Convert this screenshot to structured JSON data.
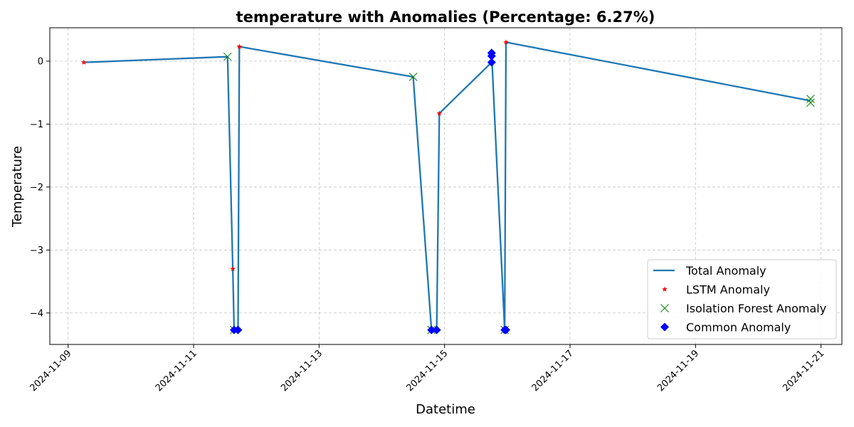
{
  "chart_data": {
    "type": "line",
    "title": "temperature with Anomalies (Percentage: 6.27%)",
    "xlabel": "Datetime",
    "ylabel": "Temperature",
    "x_ticks": [
      "2024-11-09",
      "2024-11-11",
      "2024-11-13",
      "2024-11-15",
      "2024-11-17",
      "2024-11-19",
      "2024-11-21"
    ],
    "y_ticks": [
      0,
      -1,
      -2,
      -3,
      -4
    ],
    "y_tick_labels": [
      "0",
      "−1",
      "−2",
      "−3",
      "−4"
    ],
    "xlim": [
      "2024-11-08T17:00",
      "2024-11-21T08:00"
    ],
    "ylim": [
      -4.5,
      0.53
    ],
    "grid": true,
    "legend_position": "lower-right",
    "series": [
      {
        "name": "Total Anomaly",
        "kind": "line",
        "color": "#1f77b4",
        "points": [
          [
            "2024-11-09T06:00",
            -0.02
          ],
          [
            "2024-11-11T13:00",
            0.07
          ],
          [
            "2024-11-11T15:00",
            -3.3
          ],
          [
            "2024-11-11T15:30",
            -4.27
          ],
          [
            "2024-11-11T17:00",
            -4.27
          ],
          [
            "2024-11-11T17:30",
            0.23
          ],
          [
            "2024-11-14T12:00",
            -0.25
          ],
          [
            "2024-11-14T19:00",
            -4.27
          ],
          [
            "2024-11-14T21:00",
            -4.27
          ],
          [
            "2024-11-14T22:00",
            -0.83
          ],
          [
            "2024-11-15T18:00",
            -0.02
          ],
          [
            "2024-11-15T18:00",
            0.13
          ],
          [
            "2024-11-15T23:00",
            -4.27
          ],
          [
            "2024-11-15T23:30",
            0.3
          ],
          [
            "2024-11-20T20:00",
            -0.63
          ]
        ]
      },
      {
        "name": "LSTM Anomaly",
        "kind": "marker",
        "marker": "star",
        "color": "#ff0000",
        "points": [
          [
            "2024-11-09T06:00",
            -0.02
          ],
          [
            "2024-11-11T15:00",
            -3.3
          ],
          [
            "2024-11-11T17:30",
            0.23
          ],
          [
            "2024-11-14T22:00",
            -0.83
          ],
          [
            "2024-11-15T23:30",
            0.3
          ]
        ]
      },
      {
        "name": "Isolation Forest Anomaly",
        "kind": "marker",
        "marker": "x",
        "color": "#008000",
        "points": [
          [
            "2024-11-11T13:00",
            0.07
          ],
          [
            "2024-11-11T15:30",
            -4.27
          ],
          [
            "2024-11-14T12:00",
            -0.25
          ],
          [
            "2024-11-14T19:00",
            -4.27
          ],
          [
            "2024-11-15T23:00",
            -4.27
          ],
          [
            "2024-11-20T20:00",
            -0.6
          ],
          [
            "2024-11-20T20:00",
            -0.66
          ]
        ]
      },
      {
        "name": "Common Anomaly",
        "kind": "marker",
        "marker": "diamond",
        "color": "#0000ff",
        "points": [
          [
            "2024-11-11T15:30",
            -4.27
          ],
          [
            "2024-11-11T17:00",
            -4.27
          ],
          [
            "2024-11-14T19:00",
            -4.27
          ],
          [
            "2024-11-14T21:00",
            -4.27
          ],
          [
            "2024-11-15T18:00",
            -0.02
          ],
          [
            "2024-11-15T18:00",
            0.08
          ],
          [
            "2024-11-15T18:00",
            0.13
          ],
          [
            "2024-11-15T23:00",
            -4.27
          ],
          [
            "2024-11-15T23:30",
            -4.27
          ]
        ]
      }
    ]
  }
}
